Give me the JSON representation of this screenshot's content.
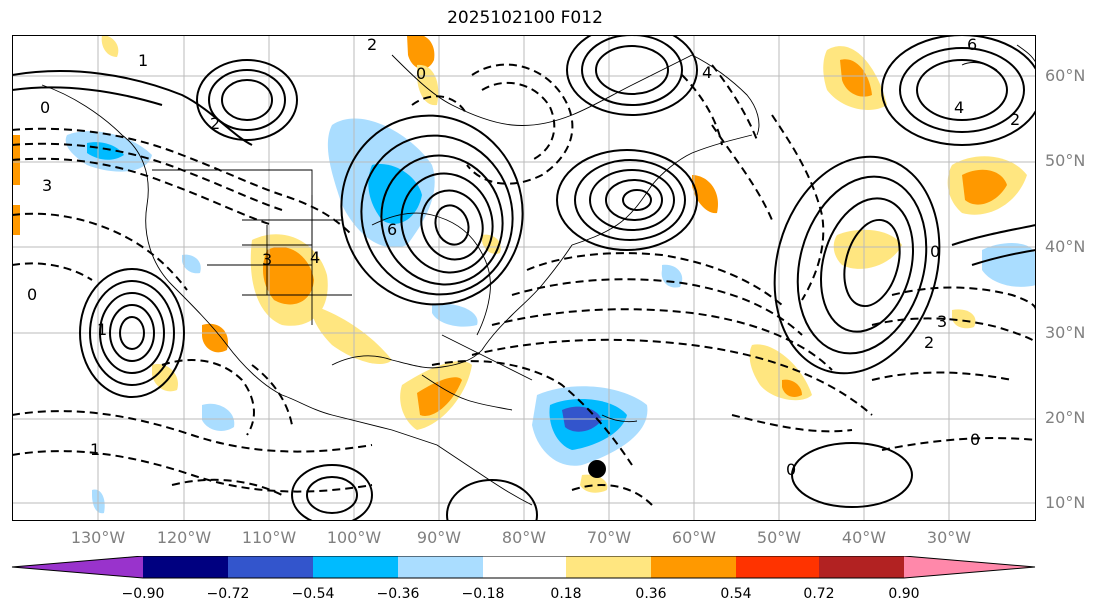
{
  "title": "2025102100 F012",
  "lat_labels": [
    "60°N",
    "50°N",
    "40°N",
    "30°N",
    "20°N",
    "10°N"
  ],
  "lon_labels": [
    "130°W",
    "120°W",
    "110°W",
    "100°W",
    "90°W",
    "80°W",
    "70°W",
    "60°W",
    "50°W",
    "40°W",
    "30°W"
  ],
  "colorbar": {
    "ticks": [
      "−0.90",
      "−0.72",
      "−0.54",
      "−0.36",
      "−0.18",
      "0.18",
      "0.36",
      "0.54",
      "0.72",
      "0.90"
    ],
    "colors": [
      "#9933cc",
      "#000080",
      "#3355cc",
      "#00bbff",
      "#aaddff",
      "#ffffff",
      "#ffe680",
      "#ff9900",
      "#ff3300",
      "#b22222",
      "#ff88aa"
    ]
  },
  "contour_labels": {
    "l1": "1",
    "l2": "2",
    "l3": "2",
    "l4": "0",
    "l5": "3",
    "l6": "0",
    "l7": "1",
    "l8": "3",
    "l9": "4",
    "l10": "6",
    "l11": "4",
    "l12": "0",
    "l13": "6",
    "l14": "4",
    "l15": "2",
    "l16": "0",
    "l17": "3",
    "l18": "2",
    "l19": "0",
    "l20": "1",
    "l21": "0"
  },
  "marker": "filled-circle"
}
